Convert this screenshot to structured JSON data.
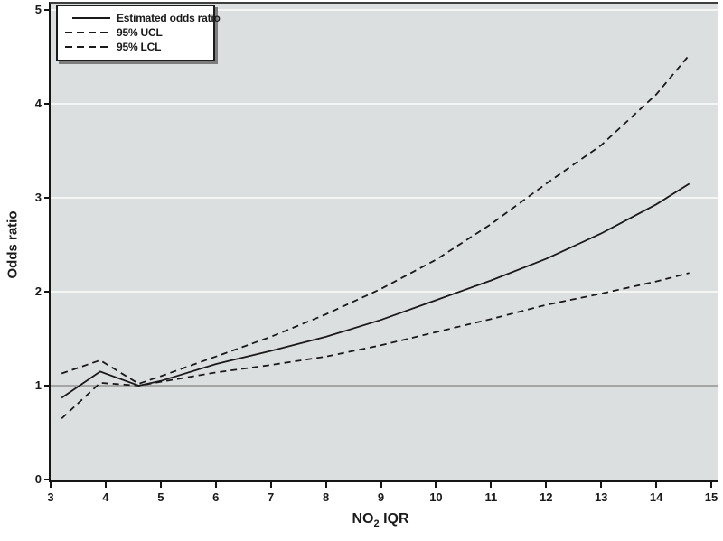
{
  "chart_data": {
    "type": "line",
    "title": "",
    "xlabel": "NO2 IQR",
    "ylabel": "Odds ratio",
    "xlim": [
      3,
      15
    ],
    "ylim": [
      0,
      5
    ],
    "x_ticks": [
      3,
      4,
      5,
      6,
      7,
      8,
      9,
      10,
      11,
      12,
      13,
      14,
      15
    ],
    "y_ticks": [
      0,
      1,
      2,
      3,
      4,
      5
    ],
    "grid": "horizontal-white-gridlines",
    "reference_line_y": 1,
    "legend_position": "top-left",
    "x": [
      3.2,
      3.9,
      4.6,
      5,
      6,
      7,
      8,
      9,
      10,
      11,
      12,
      13,
      14,
      14.6
    ],
    "series": [
      {
        "name": "Estimated odds ratio",
        "style": "solid",
        "values": [
          0.87,
          1.15,
          1.0,
          1.05,
          1.23,
          1.37,
          1.52,
          1.7,
          1.91,
          2.12,
          2.35,
          2.62,
          2.93,
          3.15
        ]
      },
      {
        "name": "95% UCL",
        "style": "dashed",
        "values": [
          1.13,
          1.27,
          1.02,
          1.1,
          1.31,
          1.52,
          1.76,
          2.03,
          2.34,
          2.72,
          3.15,
          3.56,
          4.1,
          4.52
        ]
      },
      {
        "name": "95% LCL",
        "style": "dashed",
        "values": [
          0.65,
          1.03,
          1.0,
          1.04,
          1.14,
          1.22,
          1.31,
          1.43,
          1.57,
          1.71,
          1.86,
          1.98,
          2.11,
          2.2
        ]
      }
    ]
  },
  "legend": {
    "items": [
      {
        "label": "Estimated odds ratio",
        "style": "solid"
      },
      {
        "label": "95% UCL",
        "style": "dashed"
      },
      {
        "label": "95% LCL",
        "style": "dashed"
      }
    ]
  },
  "axes": {
    "ylabel": "Odds ratio",
    "xlabel_prefix": "NO",
    "xlabel_sub": "2",
    "xlabel_suffix": " IQR"
  },
  "colors": {
    "line": "#1a1a1a",
    "plot_bg": "#dcdfe0",
    "grid": "#f4f6f6",
    "reference": "#8a8a8a",
    "axis": "#151515"
  }
}
